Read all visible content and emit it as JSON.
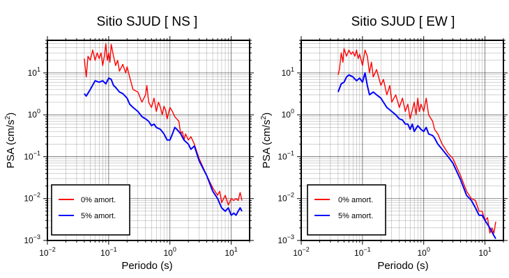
{
  "chart_data": [
    {
      "type": "line",
      "title": "Sitio SJUD [ NS ]",
      "xlabel": "Periodo (s)",
      "ylabel": "PSA (cm/s",
      "ylabel_sup": "2",
      "ylabel_end": ")",
      "xscale": "log",
      "yscale": "log",
      "xlim": [
        0.01,
        20
      ],
      "ylim": [
        0.001,
        60
      ],
      "grid": true,
      "legend_position": "lower-left",
      "x_ticks": [
        {
          "base": "10",
          "exp": "−2",
          "value": 0.01
        },
        {
          "base": "10",
          "exp": "−1",
          "value": 0.1
        },
        {
          "base": "10",
          "exp": "0",
          "value": 1
        },
        {
          "base": "10",
          "exp": "1",
          "value": 10
        }
      ],
      "y_ticks": [
        {
          "base": "10",
          "exp": "−3",
          "value": 0.001
        },
        {
          "base": "10",
          "exp": "−2",
          "value": 0.01
        },
        {
          "base": "10",
          "exp": "−1",
          "value": 0.1
        },
        {
          "base": "10",
          "exp": "0",
          "value": 1
        },
        {
          "base": "10",
          "exp": "1",
          "value": 10
        }
      ],
      "series": [
        {
          "name": "0% amort.",
          "color": "#ff0000",
          "points": [
            [
              0.04,
              22
            ],
            [
              0.043,
              8
            ],
            [
              0.046,
              25
            ],
            [
              0.05,
              20
            ],
            [
              0.055,
              35
            ],
            [
              0.06,
              20
            ],
            [
              0.065,
              30
            ],
            [
              0.07,
              22
            ],
            [
              0.075,
              30
            ],
            [
              0.08,
              15
            ],
            [
              0.085,
              25
            ],
            [
              0.09,
              50
            ],
            [
              0.095,
              20
            ],
            [
              0.1,
              30
            ],
            [
              0.105,
              18
            ],
            [
              0.11,
              48
            ],
            [
              0.12,
              25
            ],
            [
              0.13,
              15
            ],
            [
              0.14,
              20
            ],
            [
              0.15,
              11
            ],
            [
              0.17,
              16
            ],
            [
              0.19,
              10
            ],
            [
              0.2,
              14
            ],
            [
              0.22,
              8
            ],
            [
              0.25,
              4
            ],
            [
              0.3,
              3.5
            ],
            [
              0.35,
              2
            ],
            [
              0.4,
              3
            ],
            [
              0.42,
              5
            ],
            [
              0.45,
              2
            ],
            [
              0.5,
              1.5
            ],
            [
              0.55,
              2.5
            ],
            [
              0.6,
              1.2
            ],
            [
              0.65,
              2
            ],
            [
              0.7,
              1.5
            ],
            [
              0.75,
              1
            ],
            [
              0.8,
              1.6
            ],
            [
              0.85,
              1.3
            ],
            [
              0.9,
              0.8
            ],
            [
              1.0,
              1.5
            ],
            [
              1.1,
              1.2
            ],
            [
              1.2,
              0.9
            ],
            [
              1.4,
              0.7
            ],
            [
              1.5,
              0.35
            ],
            [
              1.6,
              0.4
            ],
            [
              1.7,
              0.25
            ],
            [
              1.8,
              0.35
            ],
            [
              2.0,
              0.25
            ],
            [
              2.2,
              0.3
            ],
            [
              2.5,
              0.2
            ],
            [
              3,
              0.09
            ],
            [
              4,
              0.035
            ],
            [
              5,
              0.018
            ],
            [
              6,
              0.012
            ],
            [
              6.5,
              0.015
            ],
            [
              7,
              0.008
            ],
            [
              8,
              0.012
            ],
            [
              9,
              0.007
            ],
            [
              10,
              0.01
            ],
            [
              11,
              0.009
            ],
            [
              12,
              0.01
            ],
            [
              13,
              0.009
            ],
            [
              14,
              0.014
            ],
            [
              15,
              0.009
            ]
          ]
        },
        {
          "name": "5% amort.",
          "color": "#0000ff",
          "points": [
            [
              0.04,
              3.2
            ],
            [
              0.043,
              2.8
            ],
            [
              0.05,
              4
            ],
            [
              0.06,
              6.5
            ],
            [
              0.07,
              6
            ],
            [
              0.08,
              6.5
            ],
            [
              0.09,
              5.5
            ],
            [
              0.1,
              7.5
            ],
            [
              0.11,
              7
            ],
            [
              0.12,
              5
            ],
            [
              0.13,
              4.5
            ],
            [
              0.15,
              3.5
            ],
            [
              0.17,
              3.2
            ],
            [
              0.2,
              2.5
            ],
            [
              0.22,
              1.8
            ],
            [
              0.25,
              1.5
            ],
            [
              0.3,
              1.2
            ],
            [
              0.35,
              0.9
            ],
            [
              0.4,
              0.8
            ],
            [
              0.45,
              0.7
            ],
            [
              0.5,
              0.55
            ],
            [
              0.55,
              0.6
            ],
            [
              0.6,
              0.5
            ],
            [
              0.7,
              0.45
            ],
            [
              0.8,
              0.35
            ],
            [
              0.9,
              0.25
            ],
            [
              1.0,
              0.25
            ],
            [
              1.1,
              0.35
            ],
            [
              1.2,
              0.5
            ],
            [
              1.3,
              0.45
            ],
            [
              1.5,
              0.35
            ],
            [
              1.7,
              0.25
            ],
            [
              2.0,
              0.2
            ],
            [
              2.2,
              0.15
            ],
            [
              2.5,
              0.18
            ],
            [
              3,
              0.08
            ],
            [
              4,
              0.035
            ],
            [
              5,
              0.015
            ],
            [
              6,
              0.01
            ],
            [
              7,
              0.006
            ],
            [
              8,
              0.005
            ],
            [
              9,
              0.006
            ],
            [
              10,
              0.004
            ],
            [
              11,
              0.0045
            ],
            [
              12,
              0.004
            ],
            [
              13,
              0.005
            ],
            [
              14,
              0.006
            ],
            [
              15,
              0.005
            ]
          ]
        }
      ]
    },
    {
      "type": "line",
      "title": "Sitio SJUD [ EW ]",
      "xlabel": "Periodo (s)",
      "ylabel": "PSA (cm/s",
      "ylabel_sup": "2",
      "ylabel_end": ")",
      "xscale": "log",
      "yscale": "log",
      "xlim": [
        0.01,
        20
      ],
      "ylim": [
        0.001,
        60
      ],
      "grid": true,
      "legend_position": "lower-left",
      "x_ticks": [
        {
          "base": "10",
          "exp": "−2",
          "value": 0.01
        },
        {
          "base": "10",
          "exp": "−1",
          "value": 0.1
        },
        {
          "base": "10",
          "exp": "0",
          "value": 1
        },
        {
          "base": "10",
          "exp": "1",
          "value": 10
        }
      ],
      "y_ticks": [
        {
          "base": "10",
          "exp": "−3",
          "value": 0.001
        },
        {
          "base": "10",
          "exp": "−2",
          "value": 0.01
        },
        {
          "base": "10",
          "exp": "−1",
          "value": 0.1
        },
        {
          "base": "10",
          "exp": "0",
          "value": 1
        },
        {
          "base": "10",
          "exp": "1",
          "value": 10
        }
      ],
      "series": [
        {
          "name": "0% amort.",
          "color": "#ff0000",
          "points": [
            [
              0.04,
              9
            ],
            [
              0.042,
              12
            ],
            [
              0.045,
              30
            ],
            [
              0.048,
              18
            ],
            [
              0.05,
              38
            ],
            [
              0.055,
              25
            ],
            [
              0.06,
              35
            ],
            [
              0.065,
              28
            ],
            [
              0.07,
              32
            ],
            [
              0.075,
              25
            ],
            [
              0.08,
              35
            ],
            [
              0.085,
              22
            ],
            [
              0.09,
              28
            ],
            [
              0.1,
              15
            ],
            [
              0.11,
              35
            ],
            [
              0.12,
              25
            ],
            [
              0.13,
              10
            ],
            [
              0.14,
              18
            ],
            [
              0.15,
              8
            ],
            [
              0.17,
              12
            ],
            [
              0.2,
              5
            ],
            [
              0.22,
              7
            ],
            [
              0.25,
              3
            ],
            [
              0.28,
              5
            ],
            [
              0.3,
              2
            ],
            [
              0.35,
              3
            ],
            [
              0.4,
              1.5
            ],
            [
              0.45,
              2.5
            ],
            [
              0.5,
              1.2
            ],
            [
              0.55,
              1.8
            ],
            [
              0.6,
              0.8
            ],
            [
              0.7,
              2
            ],
            [
              0.75,
              1
            ],
            [
              0.8,
              2.5
            ],
            [
              0.85,
              1.2
            ],
            [
              0.9,
              1.8
            ],
            [
              1.0,
              1.2
            ],
            [
              1.1,
              2.5
            ],
            [
              1.2,
              1
            ],
            [
              1.4,
              0.7
            ],
            [
              1.5,
              0.45
            ],
            [
              1.7,
              0.35
            ],
            [
              2.0,
              0.2
            ],
            [
              2.5,
              0.12
            ],
            [
              3,
              0.09
            ],
            [
              4,
              0.035
            ],
            [
              5,
              0.015
            ],
            [
              6,
              0.01
            ],
            [
              7,
              0.009
            ],
            [
              8,
              0.005
            ],
            [
              9,
              0.005
            ],
            [
              10,
              0.003
            ],
            [
              11,
              0.0035
            ],
            [
              12,
              0.0015
            ],
            [
              13,
              0.002
            ],
            [
              14,
              0.0015
            ],
            [
              15,
              0.0028
            ]
          ]
        },
        {
          "name": "5% amort.",
          "color": "#0000ff",
          "points": [
            [
              0.04,
              3.5
            ],
            [
              0.045,
              5.5
            ],
            [
              0.05,
              6
            ],
            [
              0.055,
              8
            ],
            [
              0.06,
              9
            ],
            [
              0.07,
              8
            ],
            [
              0.08,
              6.5
            ],
            [
              0.09,
              7.5
            ],
            [
              0.1,
              6
            ],
            [
              0.11,
              10
            ],
            [
              0.12,
              5
            ],
            [
              0.13,
              3
            ],
            [
              0.15,
              3.5
            ],
            [
              0.17,
              3
            ],
            [
              0.2,
              2.5
            ],
            [
              0.22,
              2
            ],
            [
              0.25,
              1.5
            ],
            [
              0.3,
              1.2
            ],
            [
              0.35,
              1
            ],
            [
              0.4,
              0.8
            ],
            [
              0.45,
              0.75
            ],
            [
              0.5,
              0.6
            ],
            [
              0.55,
              0.6
            ],
            [
              0.6,
              0.45
            ],
            [
              0.65,
              0.6
            ],
            [
              0.7,
              0.4
            ],
            [
              0.8,
              0.55
            ],
            [
              0.9,
              0.45
            ],
            [
              1.0,
              0.4
            ],
            [
              1.1,
              0.5
            ],
            [
              1.2,
              0.35
            ],
            [
              1.4,
              0.32
            ],
            [
              1.5,
              0.28
            ],
            [
              1.7,
              0.2
            ],
            [
              2.0,
              0.15
            ],
            [
              2.5,
              0.1
            ],
            [
              3,
              0.07
            ],
            [
              4,
              0.028
            ],
            [
              5,
              0.012
            ],
            [
              6,
              0.009
            ],
            [
              7,
              0.006
            ],
            [
              8,
              0.004
            ],
            [
              9,
              0.004
            ],
            [
              10,
              0.003
            ],
            [
              12,
              0.002
            ],
            [
              14,
              0.0013
            ],
            [
              15,
              0.0011
            ]
          ]
        }
      ]
    }
  ]
}
